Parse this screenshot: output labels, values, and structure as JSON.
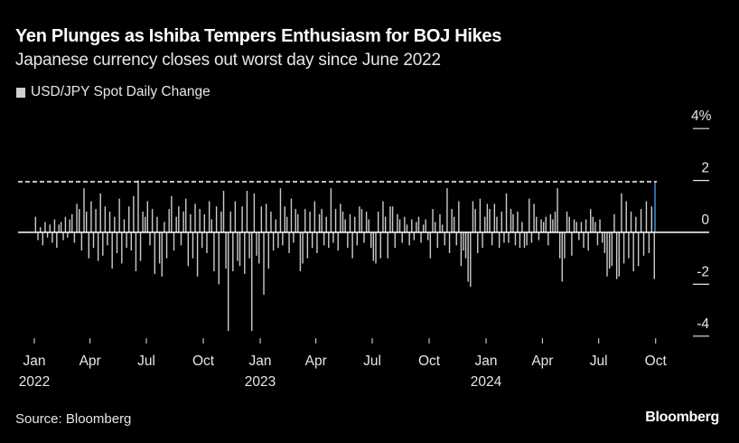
{
  "header": {
    "title": "Yen Plunges as Ishiba Tempers Enthusiasm for BOJ Hikes",
    "subtitle": "Japanese currency closes out worst day since June 2022"
  },
  "footer": {
    "source": "Source: Bloomberg",
    "logo": "Bloomberg"
  },
  "colors": {
    "background": "#000000",
    "bars": "#cccccc",
    "latest_bar": "#2f6fa8",
    "reference_line": "#ffffff"
  },
  "chart_data": {
    "type": "bar",
    "title": "Yen Plunges as Ishiba Tempers Enthusiasm for BOJ Hikes",
    "subtitle": "Japanese currency closes out worst day since June 2022",
    "legend": [
      {
        "name": "USD/JPY Spot Daily Change",
        "color": "#cccccc"
      }
    ],
    "legend_placement": "top-left",
    "ylabel_unit": "%",
    "ylim": [
      -4.5,
      4.5
    ],
    "y_ticks": [
      {
        "value": 4,
        "label": "4%"
      },
      {
        "value": 2,
        "label": "2"
      },
      {
        "value": 0,
        "label": "0"
      },
      {
        "value": -2,
        "label": "-2"
      },
      {
        "value": -4,
        "label": "-4"
      }
    ],
    "y_axis_side": "right",
    "x_range": [
      "2021-12-06",
      "2024-10-31"
    ],
    "x_ticks": [
      {
        "date": "2022-01-01",
        "label": "Jan",
        "year": "2022"
      },
      {
        "date": "2022-04-01",
        "label": "Apr",
        "year": ""
      },
      {
        "date": "2022-07-01",
        "label": "Jul",
        "year": ""
      },
      {
        "date": "2022-10-01",
        "label": "Oct",
        "year": ""
      },
      {
        "date": "2023-01-01",
        "label": "Jan",
        "year": "2023"
      },
      {
        "date": "2023-04-01",
        "label": "Apr",
        "year": ""
      },
      {
        "date": "2023-07-01",
        "label": "Jul",
        "year": ""
      },
      {
        "date": "2023-10-01",
        "label": "Oct",
        "year": ""
      },
      {
        "date": "2024-01-01",
        "label": "Jan",
        "year": "2024"
      },
      {
        "date": "2024-04-01",
        "label": "Apr",
        "year": ""
      },
      {
        "date": "2024-07-01",
        "label": "Jul",
        "year": ""
      },
      {
        "date": "2024-10-01",
        "label": "Oct",
        "year": ""
      }
    ],
    "grid": false,
    "reference_line": {
      "value": 1.95,
      "style": "dashed"
    },
    "series": [
      {
        "name": "USD/JPY Spot Daily Change",
        "monthly_values": [
          {
            "month": "2022-01",
            "values": [
              0.6,
              -0.3,
              0.2,
              -0.5,
              0.4,
              -0.2,
              0.3,
              -0.4
            ]
          },
          {
            "month": "2022-02",
            "values": [
              0.5,
              -0.6,
              0.3,
              0.4,
              -0.3,
              0.6,
              -0.2,
              0.5
            ]
          },
          {
            "month": "2022-03",
            "values": [
              0.7,
              -0.4,
              1.1,
              0.9,
              -0.7,
              1.7,
              0.8,
              -1.0
            ]
          },
          {
            "month": "2022-04",
            "values": [
              1.2,
              -0.6,
              0.9,
              -1.1,
              1.5,
              -0.9,
              1.0,
              -0.5
            ]
          },
          {
            "month": "2022-05",
            "values": [
              0.8,
              -1.4,
              0.6,
              -0.8,
              1.3,
              -1.2,
              0.5,
              -0.6
            ]
          },
          {
            "month": "2022-06",
            "values": [
              1.0,
              -0.7,
              1.4,
              -1.5,
              2.0,
              -1.1,
              0.8,
              0.6
            ]
          },
          {
            "month": "2022-07",
            "values": [
              1.2,
              -0.5,
              0.9,
              -1.6,
              0.6,
              -1.2,
              -1.7,
              0.4
            ]
          },
          {
            "month": "2022-08",
            "values": [
              -1.0,
              0.9,
              1.4,
              -0.7,
              0.6,
              1.0,
              -0.5,
              0.8
            ]
          },
          {
            "month": "2022-09",
            "values": [
              1.3,
              -1.3,
              0.7,
              -1.0,
              1.1,
              -1.7,
              0.9,
              -0.6
            ]
          },
          {
            "month": "2022-10",
            "values": [
              0.7,
              -0.8,
              1.2,
              0.5,
              -1.5,
              1.0,
              -2.0,
              0.8
            ]
          },
          {
            "month": "2022-11",
            "values": [
              1.6,
              -1.4,
              -3.8,
              0.8,
              -1.5,
              1.2,
              -1.1,
              -1.3
            ]
          },
          {
            "month": "2022-12",
            "values": [
              1.0,
              -1.6,
              1.6,
              -1.0,
              -3.8,
              1.5,
              -0.9,
              -1.2
            ]
          },
          {
            "month": "2023-01",
            "values": [
              1.0,
              -2.4,
              1.1,
              -1.4,
              0.8,
              -0.7,
              0.5,
              -0.6
            ]
          },
          {
            "month": "2023-02",
            "values": [
              1.7,
              -0.5,
              1.0,
              0.6,
              -0.8,
              1.3,
              -0.4,
              0.9
            ]
          },
          {
            "month": "2023-03",
            "values": [
              0.7,
              -1.5,
              -1.2,
              0.9,
              -1.0,
              0.8,
              -0.6,
              1.2
            ]
          },
          {
            "month": "2023-04",
            "values": [
              -0.8,
              0.7,
              0.9,
              -0.5,
              0.6,
              -0.6,
              1.7,
              -0.4
            ]
          },
          {
            "month": "2023-05",
            "values": [
              0.9,
              -0.7,
              1.1,
              0.8,
              0.5,
              -0.6,
              0.7,
              -1.0
            ]
          },
          {
            "month": "2023-06",
            "values": [
              0.6,
              -0.5,
              1.0,
              0.9,
              -0.4,
              0.8,
              0.5,
              -0.6
            ]
          },
          {
            "month": "2023-07",
            "values": [
              -1.1,
              -1.2,
              0.8,
              -1.0,
              1.2,
              0.6,
              -1.0,
              1.0
            ]
          },
          {
            "month": "2023-08",
            "values": [
              1.0,
              -0.6,
              0.7,
              0.5,
              -0.4,
              0.6,
              0.3,
              -0.5
            ]
          },
          {
            "month": "2023-09",
            "values": [
              0.5,
              -0.3,
              0.4,
              0.6,
              -0.4,
              0.3,
              0.5,
              -0.3
            ]
          },
          {
            "month": "2023-10",
            "values": [
              -1.0,
              0.9,
              0.4,
              -0.6,
              0.7,
              0.3,
              -0.5,
              1.7
            ]
          },
          {
            "month": "2023-11",
            "values": [
              -0.8,
              0.9,
              0.6,
              -0.5,
              1.2,
              -1.3,
              -0.7,
              -1.0
            ]
          },
          {
            "month": "2023-12",
            "values": [
              -1.9,
              -2.1,
              1.2,
              0.9,
              -0.8,
              1.3,
              -0.6,
              0.6
            ]
          },
          {
            "month": "2024-01",
            "values": [
              1.1,
              0.9,
              -0.5,
              1.1,
              0.6,
              -0.6,
              0.8,
              -0.4
            ]
          },
          {
            "month": "2024-02",
            "values": [
              1.5,
              -0.4,
              0.9,
              0.7,
              -0.5,
              0.8,
              -0.6,
              0.4
            ]
          },
          {
            "month": "2024-03",
            "values": [
              -0.6,
              -0.5,
              1.3,
              -0.4,
              1.1,
              0.6,
              -0.3,
              0.5
            ]
          },
          {
            "month": "2024-04",
            "values": [
              0.4,
              0.6,
              -0.5,
              0.7,
              0.5,
              0.8,
              1.7,
              -1.0
            ]
          },
          {
            "month": "2024-05",
            "values": [
              -1.9,
              -1.0,
              0.8,
              0.6,
              -0.9,
              0.5,
              0.4,
              -0.3
            ]
          },
          {
            "month": "2024-06",
            "values": [
              0.4,
              -0.6,
              0.5,
              -0.7,
              0.9,
              0.6,
              0.4,
              -0.5
            ]
          },
          {
            "month": "2024-07",
            "values": [
              0.5,
              -0.4,
              -0.8,
              -1.7,
              -1.4,
              -1.3,
              0.7,
              -1.8
            ]
          },
          {
            "month": "2024-08",
            "values": [
              -1.7,
              1.5,
              -1.2,
              1.2,
              -1.0,
              0.8,
              -1.5,
              0.6
            ]
          },
          {
            "month": "2024-09",
            "values": [
              -1.3,
              0.9,
              -0.9,
              1.2,
              -0.8,
              1.0,
              -1.8
            ]
          }
        ],
        "latest": {
          "date": "2024-09-30",
          "value": 1.95,
          "highlighted": true
        }
      }
    ]
  }
}
